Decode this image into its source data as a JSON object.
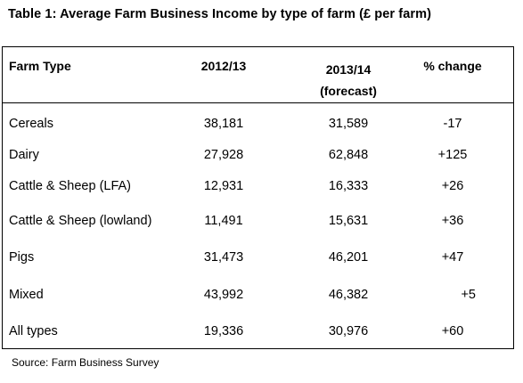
{
  "title": "Table 1: Average Farm Business Income by type of farm (£ per farm)",
  "headers": {
    "farm_type": "Farm Type",
    "year1": "2012/13",
    "year2": "2013/14",
    "year2_note": "(forecast)",
    "change": "% change"
  },
  "rows": [
    {
      "type": "Cereals",
      "y1": "38,181",
      "y2": "31,589",
      "change": "-17"
    },
    {
      "type": "Dairy",
      "y1": "27,928",
      "y2": "62,848",
      "change": "+125"
    },
    {
      "type": "Cattle & Sheep (LFA)",
      "y1": "12,931",
      "y2": "16,333",
      "change": "+26"
    },
    {
      "type": "Cattle & Sheep (lowland)",
      "y1": "11,491",
      "y2": "15,631",
      "change": "+36"
    },
    {
      "type": "Pigs",
      "y1": "31,473",
      "y2": "46,201",
      "change": "+47"
    },
    {
      "type": "Mixed",
      "y1": "43,992",
      "y2": "46,382",
      "change": "+5"
    },
    {
      "type": "All types",
      "y1": "19,336",
      "y2": "30,976",
      "change": "+60"
    }
  ],
  "source": "Source: Farm Business Survey"
}
